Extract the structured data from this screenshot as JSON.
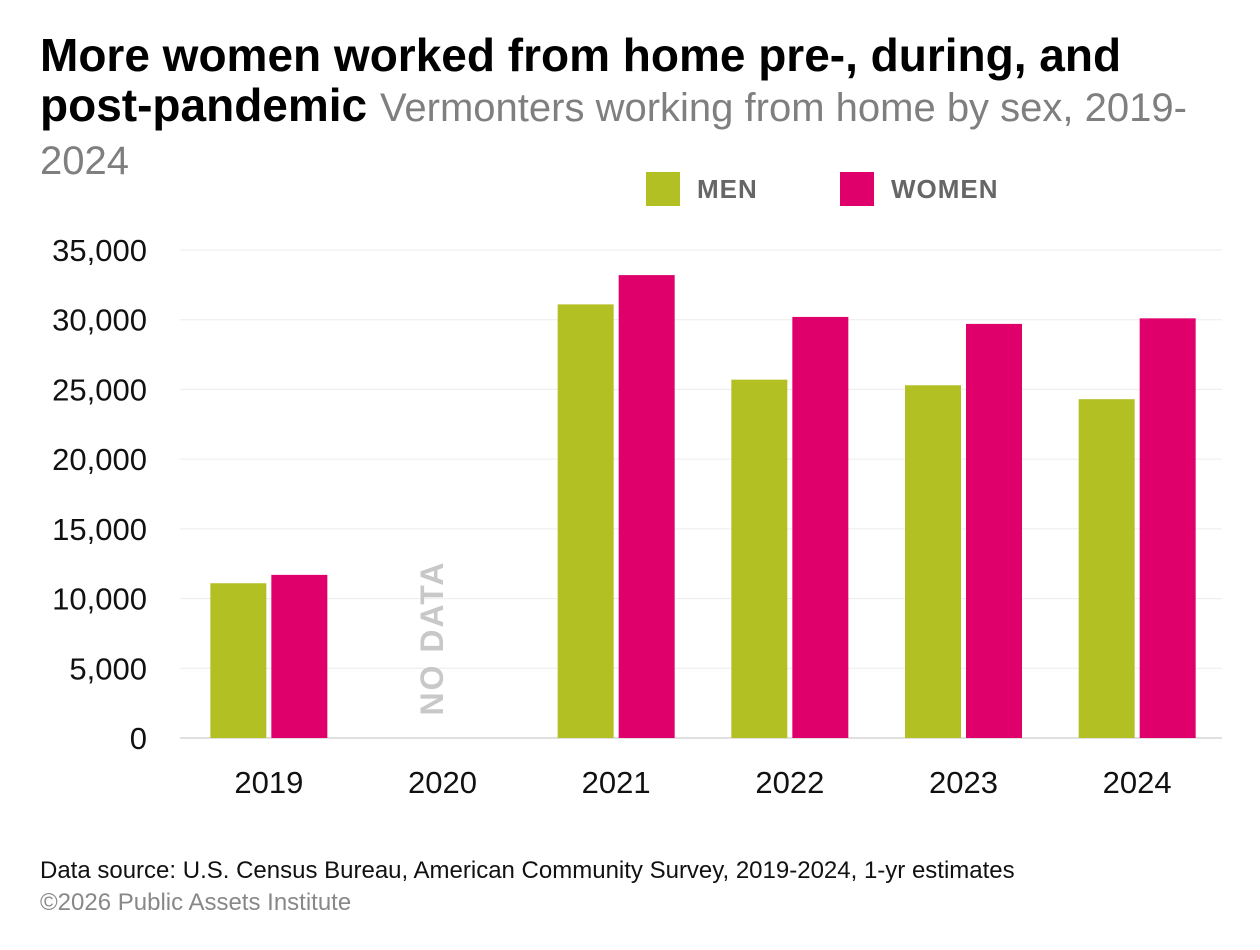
{
  "chart_data": {
    "type": "bar",
    "title": "More women worked from home pre-, during, and post-pandemic",
    "subtitle": "Vermonters working from home by sex, 2019-2024",
    "categories": [
      "2019",
      "2020",
      "2021",
      "2022",
      "2023",
      "2024"
    ],
    "series": [
      {
        "name": "MEN",
        "color": "#b3c024",
        "values": [
          11100,
          null,
          31100,
          25700,
          25300,
          24300
        ]
      },
      {
        "name": "WOMEN",
        "color": "#e0006b",
        "values": [
          11700,
          null,
          33200,
          30200,
          29700,
          30100
        ]
      }
    ],
    "ylim": [
      0,
      35000
    ],
    "yticks": [
      0,
      5000,
      10000,
      15000,
      20000,
      25000,
      30000,
      35000
    ],
    "ytick_labels": [
      "0",
      "5,000",
      "10,000",
      "15,000",
      "20,000",
      "25,000",
      "30,000",
      "35,000"
    ],
    "annotations": [
      {
        "category": "2020",
        "text": "NO DATA"
      }
    ],
    "legend_position": "top-right",
    "grid": true
  },
  "footer": {
    "source": "Data source: U.S. Census Bureau, American Community Survey, 2019-2024, 1-yr estimates",
    "credit": "©2026 Public Assets Institute"
  }
}
